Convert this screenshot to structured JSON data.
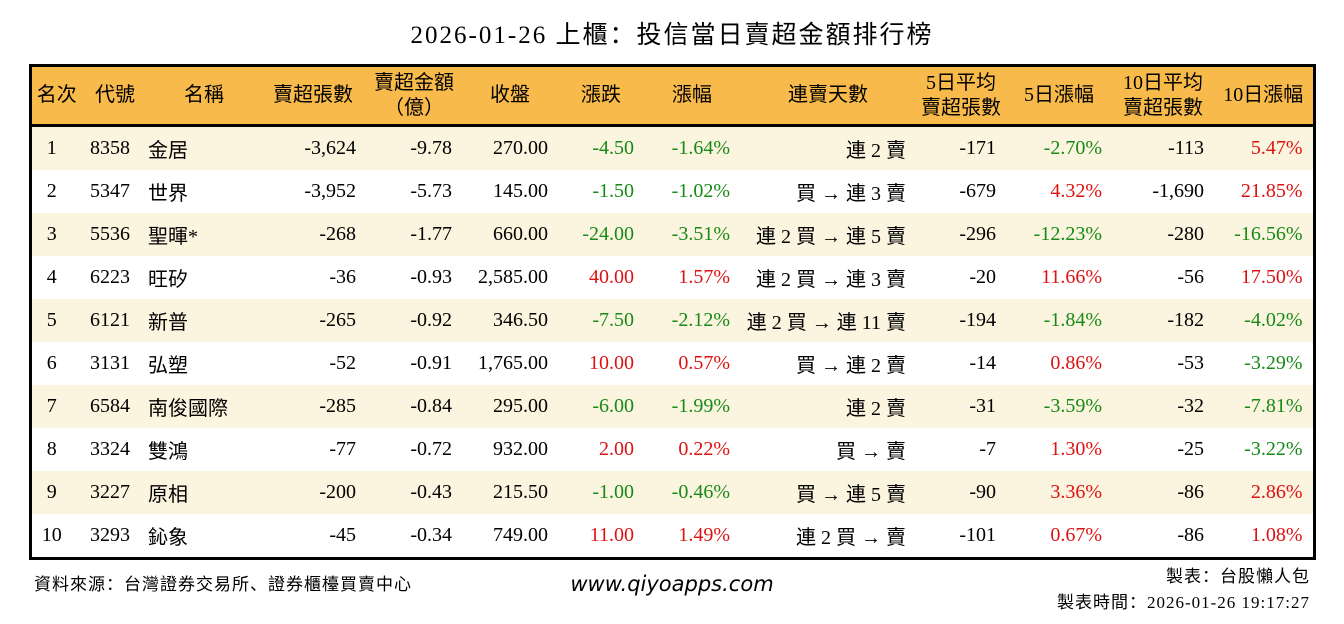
{
  "title": "2026-01-26 上櫃：投信當日賣超金額排行榜",
  "colors": {
    "header_bg": "#F8BA4B",
    "row_alt_bg": "#FBF4DE",
    "up_red": "#DE1212",
    "down_green": "#178A17",
    "border": "#000000"
  },
  "table": {
    "headers": [
      {
        "key": "rank",
        "label": "名次"
      },
      {
        "key": "code",
        "label": "代號"
      },
      {
        "key": "name",
        "label": "名稱"
      },
      {
        "key": "sell_qty",
        "label": "賣超張數"
      },
      {
        "key": "sell_amt",
        "label": "賣超金額\n（億）"
      },
      {
        "key": "close",
        "label": "收盤"
      },
      {
        "key": "change",
        "label": "漲跌"
      },
      {
        "key": "change_pct",
        "label": "漲幅"
      },
      {
        "key": "streak",
        "label": "連賣天數"
      },
      {
        "key": "avg5",
        "label": "5日平均\n賣超張數"
      },
      {
        "key": "pct5",
        "label": "5日漲幅"
      },
      {
        "key": "avg10",
        "label": "10日平均\n賣超張數"
      },
      {
        "key": "pct10",
        "label": "10日漲幅"
      }
    ],
    "colored_columns": [
      "change",
      "change_pct",
      "pct5",
      "pct10"
    ],
    "rows": [
      {
        "rank": "1",
        "code": "8358",
        "name": "金居",
        "sell_qty": "-3,624",
        "sell_amt": "-9.78",
        "close": "270.00",
        "change": "-4.50",
        "change_pct": "-1.64%",
        "streak": "連 2 賣",
        "avg5": "-171",
        "pct5": "-2.70%",
        "avg10": "-113",
        "pct10": "5.47%"
      },
      {
        "rank": "2",
        "code": "5347",
        "name": "世界",
        "sell_qty": "-3,952",
        "sell_amt": "-5.73",
        "close": "145.00",
        "change": "-1.50",
        "change_pct": "-1.02%",
        "streak": "買 → 連 3 賣",
        "avg5": "-679",
        "pct5": "4.32%",
        "avg10": "-1,690",
        "pct10": "21.85%"
      },
      {
        "rank": "3",
        "code": "5536",
        "name": "聖暉*",
        "sell_qty": "-268",
        "sell_amt": "-1.77",
        "close": "660.00",
        "change": "-24.00",
        "change_pct": "-3.51%",
        "streak": "連 2 買 → 連 5 賣",
        "avg5": "-296",
        "pct5": "-12.23%",
        "avg10": "-280",
        "pct10": "-16.56%"
      },
      {
        "rank": "4",
        "code": "6223",
        "name": "旺矽",
        "sell_qty": "-36",
        "sell_amt": "-0.93",
        "close": "2,585.00",
        "change": "40.00",
        "change_pct": "1.57%",
        "streak": "連 2 買 → 連 3 賣",
        "avg5": "-20",
        "pct5": "11.66%",
        "avg10": "-56",
        "pct10": "17.50%"
      },
      {
        "rank": "5",
        "code": "6121",
        "name": "新普",
        "sell_qty": "-265",
        "sell_amt": "-0.92",
        "close": "346.50",
        "change": "-7.50",
        "change_pct": "-2.12%",
        "streak": "連 2 買 → 連 11 賣",
        "avg5": "-194",
        "pct5": "-1.84%",
        "avg10": "-182",
        "pct10": "-4.02%"
      },
      {
        "rank": "6",
        "code": "3131",
        "name": "弘塑",
        "sell_qty": "-52",
        "sell_amt": "-0.91",
        "close": "1,765.00",
        "change": "10.00",
        "change_pct": "0.57%",
        "streak": "買 → 連 2 賣",
        "avg5": "-14",
        "pct5": "0.86%",
        "avg10": "-53",
        "pct10": "-3.29%"
      },
      {
        "rank": "7",
        "code": "6584",
        "name": "南俊國際",
        "sell_qty": "-285",
        "sell_amt": "-0.84",
        "close": "295.00",
        "change": "-6.00",
        "change_pct": "-1.99%",
        "streak": "連 2 賣",
        "avg5": "-31",
        "pct5": "-3.59%",
        "avg10": "-32",
        "pct10": "-7.81%"
      },
      {
        "rank": "8",
        "code": "3324",
        "name": "雙鴻",
        "sell_qty": "-77",
        "sell_amt": "-0.72",
        "close": "932.00",
        "change": "2.00",
        "change_pct": "0.22%",
        "streak": "買 → 賣",
        "avg5": "-7",
        "pct5": "1.30%",
        "avg10": "-25",
        "pct10": "-3.22%"
      },
      {
        "rank": "9",
        "code": "3227",
        "name": "原相",
        "sell_qty": "-200",
        "sell_amt": "-0.43",
        "close": "215.50",
        "change": "-1.00",
        "change_pct": "-0.46%",
        "streak": "買 → 連 5 賣",
        "avg5": "-90",
        "pct5": "3.36%",
        "avg10": "-86",
        "pct10": "2.86%"
      },
      {
        "rank": "10",
        "code": "3293",
        "name": "鈊象",
        "sell_qty": "-45",
        "sell_amt": "-0.34",
        "close": "749.00",
        "change": "11.00",
        "change_pct": "1.49%",
        "streak": "連 2 買 → 賣",
        "avg5": "-101",
        "pct5": "0.67%",
        "avg10": "-86",
        "pct10": "1.08%"
      }
    ]
  },
  "footer": {
    "source": "資料來源：台灣證券交易所、證券櫃檯買賣中心",
    "website": "www.qiyoapps.com",
    "author": "製表：台股懶人包",
    "timestamp": "製表時間：2026-01-26 19:17:27"
  }
}
